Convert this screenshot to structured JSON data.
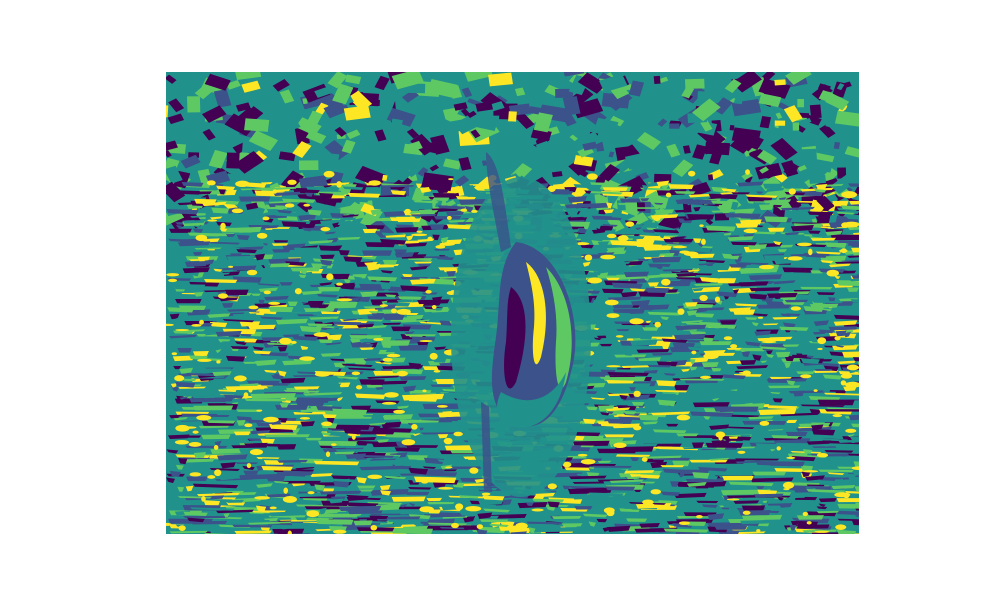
{
  "figure": {
    "kind": "false-color segmentation / quantized image",
    "palette": {
      "dark_purple": "#440154",
      "indigo": "#3b528b",
      "teal": "#21918c",
      "green": "#5ec962",
      "yellow": "#fde725"
    },
    "icon": "none"
  }
}
